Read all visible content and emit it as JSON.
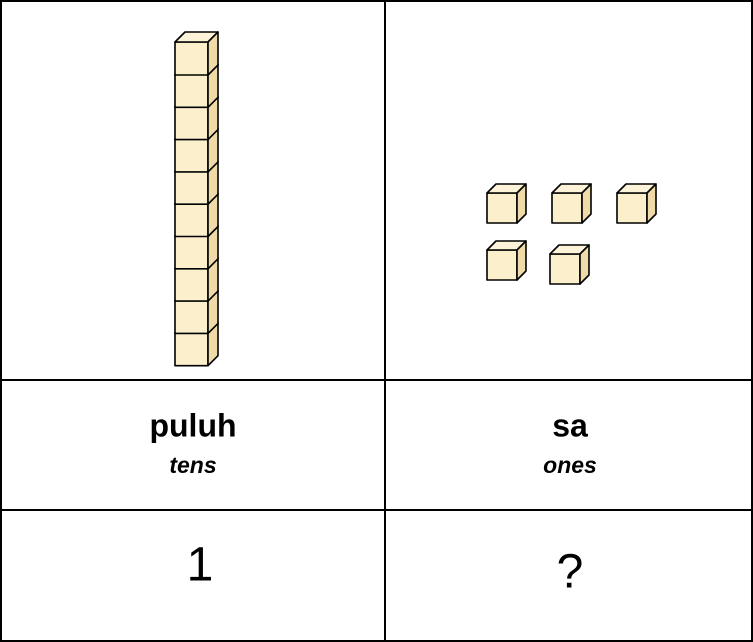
{
  "table": {
    "columns": [
      {
        "label": "puluh",
        "sublabel": "tens",
        "value": "1"
      },
      {
        "label": "sa",
        "sublabel": "ones",
        "value": "?"
      }
    ]
  }
}
